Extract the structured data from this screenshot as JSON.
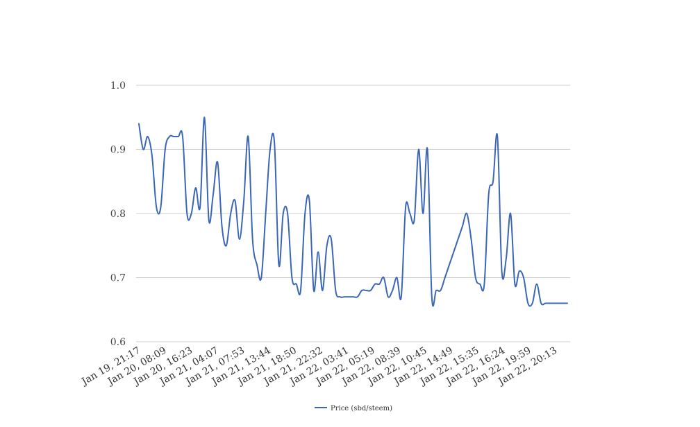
{
  "chart_data": {
    "type": "line",
    "title": "",
    "xlabel": "",
    "ylabel": "",
    "ylim": [
      0.6,
      1.0
    ],
    "yticks": [
      "0.6",
      "0.7",
      "0.8",
      "0.9",
      "1.0"
    ],
    "xtick_labels": [
      "Jan 19, 21:17",
      "Jan 20, 08:09",
      "Jan 20, 16:23",
      "Jan 21, 04:07",
      "Jan 21, 07:53",
      "Jan 21, 13:44",
      "Jan 21, 18:50",
      "Jan 21, 22:32",
      "Jan 22, 03:41",
      "Jan 22, 05:19",
      "Jan 22, 08:39",
      "Jan 22, 10:45",
      "Jan 22, 14:49",
      "Jan 22, 15:35",
      "Jan 22, 16:24",
      "Jan 22, 19:59",
      "Jan 22, 20:13"
    ],
    "grid": true,
    "legend_position": "bottom",
    "colors": {
      "line": "#3a66b5",
      "grid": "#cccccc"
    },
    "series": [
      {
        "name": "Price (sbd/steem)",
        "values": [
          0.94,
          0.9,
          0.92,
          0.89,
          0.81,
          0.81,
          0.9,
          0.92,
          0.92,
          0.92,
          0.92,
          0.8,
          0.8,
          0.84,
          0.81,
          0.95,
          0.79,
          0.83,
          0.88,
          0.78,
          0.75,
          0.8,
          0.82,
          0.76,
          0.82,
          0.92,
          0.76,
          0.72,
          0.7,
          0.8,
          0.9,
          0.91,
          0.72,
          0.8,
          0.8,
          0.7,
          0.69,
          0.68,
          0.8,
          0.82,
          0.68,
          0.74,
          0.68,
          0.75,
          0.76,
          0.68,
          0.67,
          0.67,
          0.67,
          0.67,
          0.67,
          0.68,
          0.68,
          0.68,
          0.69,
          0.69,
          0.7,
          0.67,
          0.68,
          0.7,
          0.67,
          0.81,
          0.8,
          0.79,
          0.9,
          0.8,
          0.9,
          0.67,
          0.68,
          0.68,
          0.7,
          0.72,
          0.74,
          0.76,
          0.78,
          0.8,
          0.76,
          0.7,
          0.69,
          0.69,
          0.83,
          0.85,
          0.92,
          0.71,
          0.73,
          0.8,
          0.69,
          0.71,
          0.7,
          0.66,
          0.66,
          0.69,
          0.66,
          0.66,
          0.66,
          0.66,
          0.66,
          0.66,
          0.66
        ]
      }
    ]
  }
}
